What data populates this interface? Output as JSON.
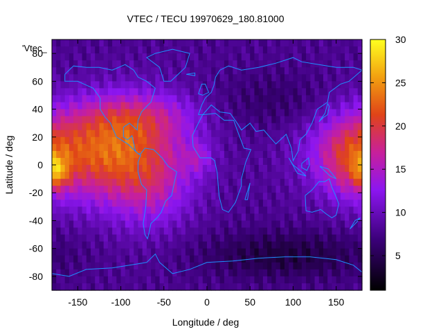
{
  "chart_data": {
    "type": "heatmap",
    "title": "VTEC / TECU 19970629_180.81000",
    "xlabel": "Longitude / deg",
    "ylabel": "Latitude / deg",
    "key_label": "'Vtec_",
    "xlim": [
      -180,
      180
    ],
    "ylim": [
      -90,
      90
    ],
    "x_ticks": [
      -150,
      -100,
      -50,
      0,
      50,
      100,
      150
    ],
    "y_ticks": [
      -80,
      -60,
      -40,
      -20,
      0,
      20,
      40,
      60,
      80
    ],
    "colorbar": {
      "range": [
        1,
        30
      ],
      "ticks": [
        5,
        10,
        15,
        20,
        25,
        30
      ],
      "palette": [
        {
          "v": 0.0,
          "color": "#000000"
        },
        {
          "v": 0.2,
          "color": "#3a0078"
        },
        {
          "v": 0.4,
          "color": "#8c16f0"
        },
        {
          "v": 0.55,
          "color": "#c8209a"
        },
        {
          "v": 0.7,
          "color": "#e04418"
        },
        {
          "v": 0.85,
          "color": "#f2a010"
        },
        {
          "v": 1.0,
          "color": "#ffff20"
        }
      ]
    },
    "grid": {
      "lon_step": 5,
      "lat_step": 5,
      "peak": {
        "lon": -175,
        "lat": -5,
        "value": 29
      }
    },
    "coastline_color": "#1e90ff"
  }
}
